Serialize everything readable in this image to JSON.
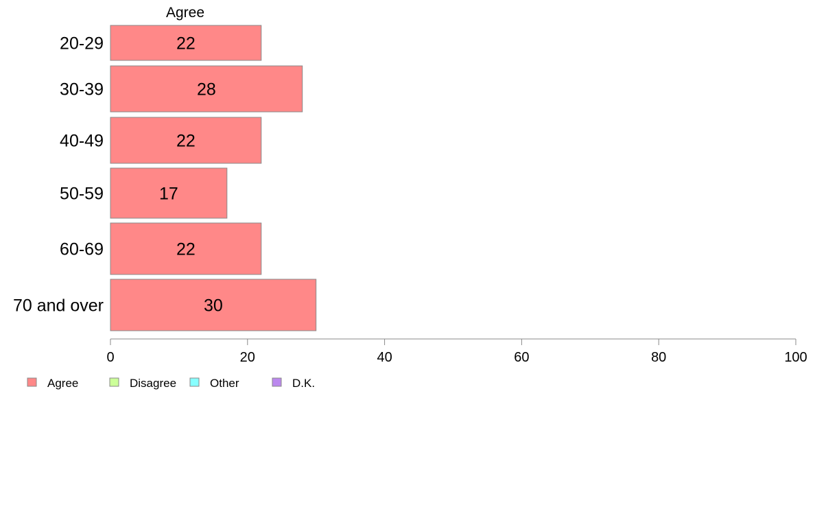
{
  "chart_data": {
    "type": "bar",
    "orientation": "horizontal",
    "stacked": true,
    "column_header": "Agree",
    "categories": [
      "20-29",
      "30-39",
      "40-49",
      "50-59",
      "60-69",
      "70 and over"
    ],
    "series": [
      {
        "name": "Agree",
        "color": "#ff8888",
        "values": [
          22,
          28,
          22,
          17,
          22,
          30
        ]
      },
      {
        "name": "Disagree",
        "color": "#ccff99",
        "values": [
          0,
          0,
          0,
          0,
          0,
          0
        ]
      },
      {
        "name": "Other",
        "color": "#88ffff",
        "values": [
          0,
          0,
          0,
          0,
          0,
          0
        ]
      },
      {
        "name": "D.K.",
        "color": "#bb88ee",
        "values": [
          0,
          0,
          0,
          0,
          0,
          0
        ]
      }
    ],
    "data_labels": [
      "22",
      "28",
      "22",
      "17",
      "22",
      "30"
    ],
    "xlim": [
      0,
      100
    ],
    "xticks": [
      0,
      20,
      40,
      60,
      80,
      100
    ],
    "legend_position": "bottom-left",
    "grid": false
  }
}
